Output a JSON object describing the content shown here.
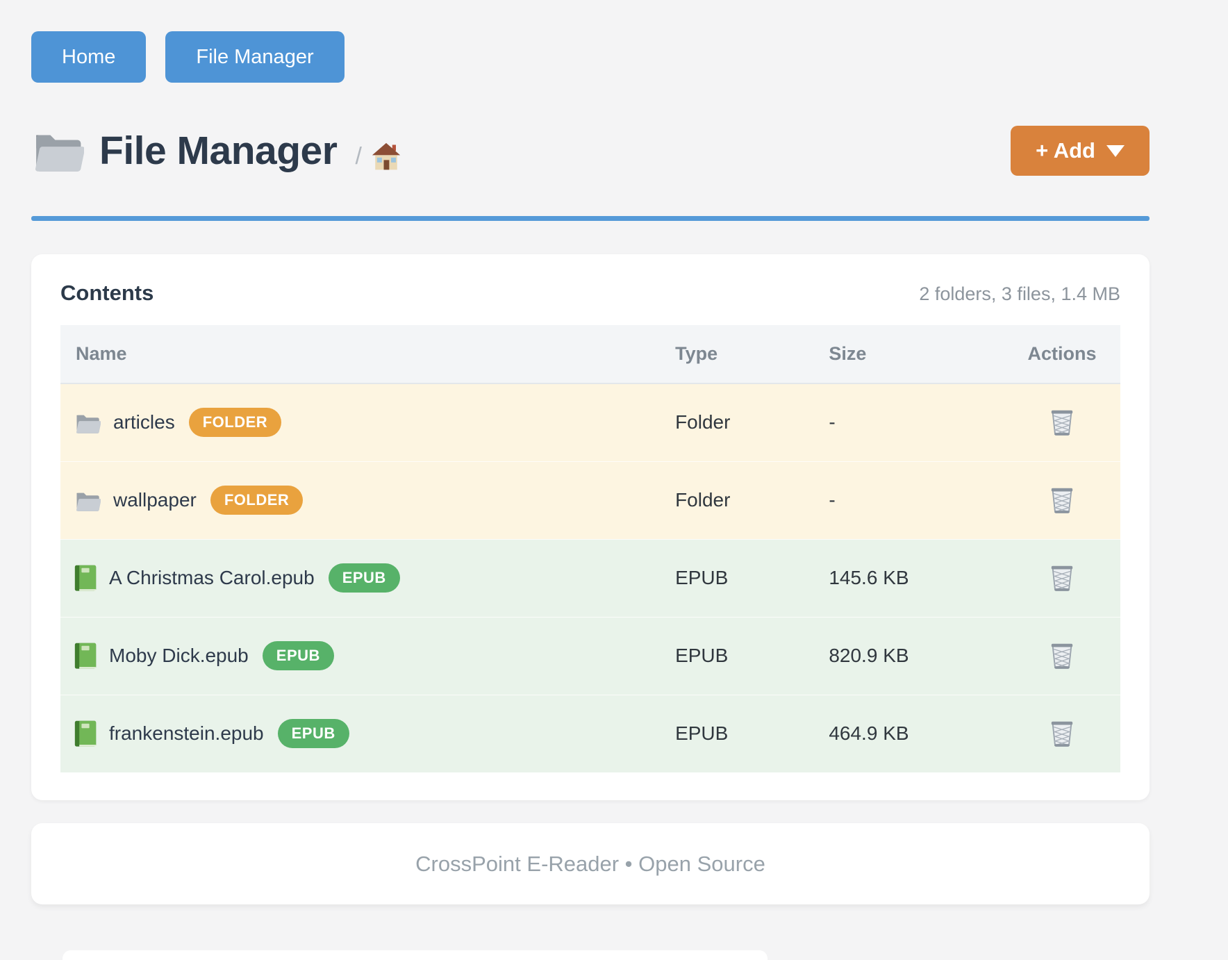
{
  "nav": {
    "home_label": "Home",
    "file_manager_label": "File Manager"
  },
  "header": {
    "title": "File Manager",
    "breadcrumb_separator": "/",
    "add_button_label": "+ Add"
  },
  "contents": {
    "heading": "Contents",
    "summary": "2 folders, 3 files, 1.4 MB",
    "table": {
      "columns": [
        "Name",
        "Type",
        "Size",
        "Actions"
      ],
      "rows": [
        {
          "name": "articles",
          "badge": "FOLDER",
          "type": "Folder",
          "size": "-",
          "kind": "folder"
        },
        {
          "name": "wallpaper",
          "badge": "FOLDER",
          "type": "Folder",
          "size": "-",
          "kind": "folder"
        },
        {
          "name": "A Christmas Carol.epub",
          "badge": "EPUB",
          "type": "EPUB",
          "size": "145.6 KB",
          "kind": "epub"
        },
        {
          "name": "Moby Dick.epub",
          "badge": "EPUB",
          "type": "EPUB",
          "size": "820.9 KB",
          "kind": "epub"
        },
        {
          "name": "frankenstein.epub",
          "badge": "EPUB",
          "type": "EPUB",
          "size": "464.9 KB",
          "kind": "epub"
        }
      ]
    }
  },
  "footer": {
    "text": "CrossPoint E-Reader • Open Source"
  },
  "icons": {
    "title": "folder-icon",
    "breadcrumb": "home-icon",
    "folder_row": "folder-icon",
    "epub_row": "green-book-icon",
    "action": "wastebasket-icon",
    "add_caret": "chevron-down-icon"
  },
  "colors": {
    "nav_button_blue": "#4e94d6",
    "add_button_orange": "#d9823c",
    "folder_badge_orange": "#e9a23e",
    "epub_badge_green": "#57b269",
    "folder_row_bg": "#fdf5e1",
    "epub_row_bg": "#e9f3ea",
    "title_text": "#2d3a4b",
    "rule_blue": "#559ad8",
    "page_bg": "#f4f4f5"
  }
}
